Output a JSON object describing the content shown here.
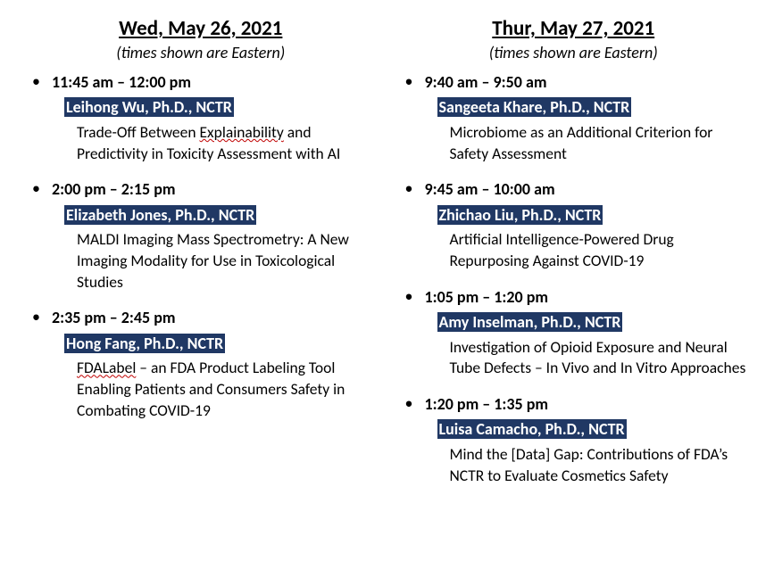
{
  "colors": {
    "speaker_bg": "#203864",
    "speaker_fg": "#ffffff",
    "text": "#000000",
    "redline": "#c00000",
    "background": "#ffffff"
  },
  "typography": {
    "font_family": "Calibri",
    "date_fontsize_pt": 17,
    "body_fontsize_pt": 13
  },
  "days": [
    {
      "date": "Wed, May 26, 2021",
      "tz_note": "(times shown are Eastern)",
      "sessions": [
        {
          "time": "11:45 am – 12:00 pm",
          "speaker": "Leihong Wu, Ph.D., NCTR",
          "title_parts": [
            "Trade-Off Between ",
            "Explainability",
            " and Predictivity in Toxicity Assessment with AI"
          ],
          "redline_idx": 1
        },
        {
          "time": "2:00 pm – 2:15 pm",
          "speaker": "Elizabeth Jones, Ph.D., NCTR",
          "title_parts": [
            "MALDI Imaging Mass Spectrometry: A New Imaging Modality for Use in Toxicological Studies"
          ],
          "redline_idx": -1
        },
        {
          "time": "2:35 pm – 2:45 pm",
          "speaker": "Hong Fang, Ph.D., NCTR",
          "title_parts": [
            "FDALabel",
            " – an FDA Product Labeling Tool Enabling Patients and Consumers Safety in Combating COVID-19"
          ],
          "redline_idx": 0
        }
      ]
    },
    {
      "date": "Thur, May 27, 2021",
      "tz_note": "(times shown are Eastern)",
      "sessions": [
        {
          "time": "9:40 am – 9:50 am",
          "speaker": "Sangeeta Khare, Ph.D., NCTR",
          "title_parts": [
            "Microbiome as an Additional Criterion for Safety Assessment"
          ],
          "redline_idx": -1
        },
        {
          "time": "9:45 am – 10:00 am",
          "speaker": "Zhichao Liu, Ph.D., NCTR",
          "title_parts": [
            "Artificial Intelligence-Powered Drug Repurposing Against COVID-19"
          ],
          "redline_idx": -1
        },
        {
          "time": "1:05 pm – 1:20 pm",
          "speaker": "Amy Inselman, Ph.D., NCTR",
          "title_parts": [
            "Investigation of Opioid Exposure and Neural Tube Defects – In Vivo and In Vitro Approaches"
          ],
          "redline_idx": -1
        },
        {
          "time": "1:20 pm – 1:35 pm",
          "speaker": "Luisa Camacho, Ph.D., NCTR",
          "title_parts": [
            "Mind the [Data] Gap: Contributions of FDA’s NCTR to Evaluate Cosmetics Safety"
          ],
          "redline_idx": -1
        }
      ]
    }
  ]
}
